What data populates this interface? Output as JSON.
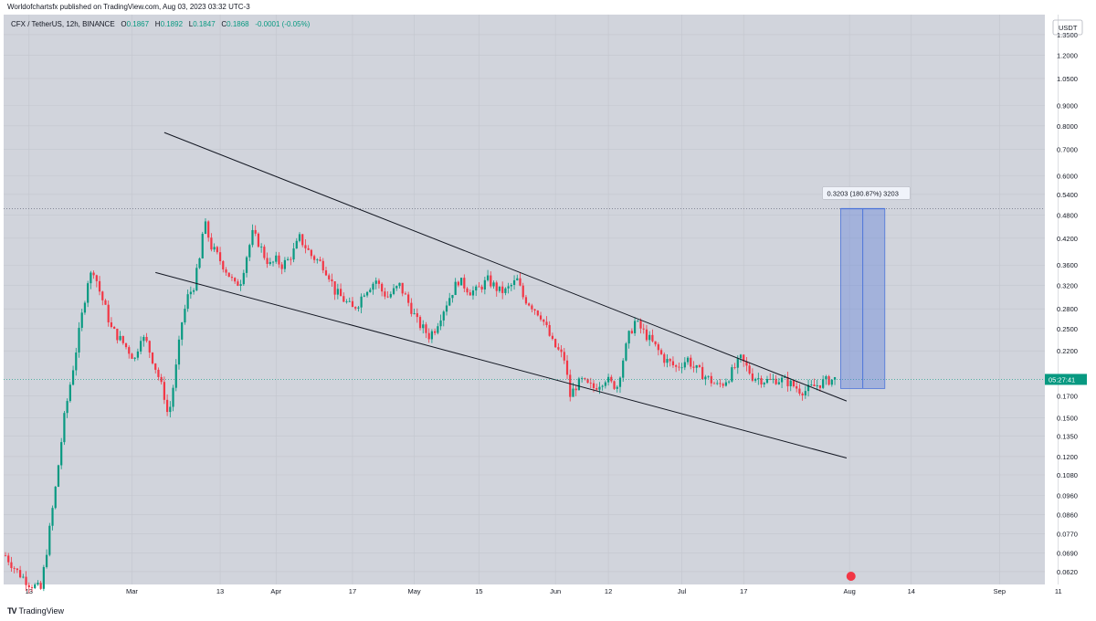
{
  "header": {
    "published": "Worldofchartsfx published on TradingView.com, Aug 03, 2023 03:32 UTC-3",
    "symbol": "CFX / TetherUS, 12h, BINANCE",
    "o_label": "O",
    "o_value": "0.1867",
    "h_label": "H",
    "h_value": "0.1892",
    "l_label": "L",
    "l_value": "0.1847",
    "c_label": "C",
    "c_value": "0.1868",
    "change": "-0.0001 (-0.05%)"
  },
  "footer": {
    "brand": "TradingView"
  },
  "colors": {
    "up": "#089981",
    "down": "#f23645",
    "background": "#d1d4dc",
    "projection": "#4c74d9",
    "price_tag": "#089981"
  },
  "chart_data": {
    "type": "candlestick",
    "currency": "USDT",
    "y_scale": "log",
    "grid": true,
    "y_ticks": [
      "1.3500",
      "1.2000",
      "1.0500",
      "0.9000",
      "0.8000",
      "0.7000",
      "0.6000",
      "0.5400",
      "0.4800",
      "0.4200",
      "0.3600",
      "0.3200",
      "0.2800",
      "0.2500",
      "0.2200",
      "0.1700",
      "0.1500",
      "0.1350",
      "0.1200",
      "0.1080",
      "0.0960",
      "0.0860",
      "0.0770",
      "0.0690",
      "0.0620"
    ],
    "x_ticks": [
      "13",
      "Mar",
      "13",
      "Apr",
      "17",
      "May",
      "15",
      "Jun",
      "12",
      "Jul",
      "17",
      "Aug",
      "14",
      "Sep",
      "11"
    ],
    "current_price_label": "05:27:41",
    "current_price": 0.1868,
    "projection": {
      "label": "0.3203 (180.87%) 3203",
      "from": 0.1773,
      "to": 0.4976
    },
    "reference_price": 0.4976,
    "price_path": [
      [
        0,
        0.068
      ],
      [
        4,
        0.062
      ],
      [
        8,
        0.058
      ],
      [
        12,
        0.056
      ],
      [
        14,
        0.07
      ],
      [
        17,
        0.1
      ],
      [
        20,
        0.15
      ],
      [
        23,
        0.2
      ],
      [
        26,
        0.27
      ],
      [
        28,
        0.33
      ],
      [
        30,
        0.35
      ],
      [
        32,
        0.31
      ],
      [
        34,
        0.28
      ],
      [
        36,
        0.25
      ],
      [
        38,
        0.24
      ],
      [
        40,
        0.23
      ],
      [
        42,
        0.22
      ],
      [
        44,
        0.21
      ],
      [
        46,
        0.24
      ],
      [
        48,
        0.23
      ],
      [
        50,
        0.21
      ],
      [
        52,
        0.19
      ],
      [
        54,
        0.17
      ],
      [
        55,
        0.155
      ],
      [
        56,
        0.16
      ],
      [
        58,
        0.2
      ],
      [
        60,
        0.26
      ],
      [
        62,
        0.3
      ],
      [
        64,
        0.32
      ],
      [
        66,
        0.37
      ],
      [
        67,
        0.43
      ],
      [
        68,
        0.45
      ],
      [
        70,
        0.4
      ],
      [
        72,
        0.38
      ],
      [
        74,
        0.36
      ],
      [
        76,
        0.34
      ],
      [
        78,
        0.32
      ],
      [
        80,
        0.33
      ],
      [
        82,
        0.38
      ],
      [
        84,
        0.43
      ],
      [
        86,
        0.41
      ],
      [
        88,
        0.38
      ],
      [
        90,
        0.36
      ],
      [
        92,
        0.37
      ],
      [
        94,
        0.36
      ],
      [
        96,
        0.37
      ],
      [
        98,
        0.39
      ],
      [
        100,
        0.42
      ],
      [
        102,
        0.4
      ],
      [
        104,
        0.38
      ],
      [
        106,
        0.37
      ],
      [
        108,
        0.36
      ],
      [
        110,
        0.34
      ],
      [
        112,
        0.31
      ],
      [
        114,
        0.3
      ],
      [
        116,
        0.29
      ],
      [
        118,
        0.28
      ],
      [
        120,
        0.29
      ],
      [
        122,
        0.31
      ],
      [
        124,
        0.32
      ],
      [
        126,
        0.33
      ],
      [
        128,
        0.31
      ],
      [
        130,
        0.3
      ],
      [
        132,
        0.31
      ],
      [
        134,
        0.32
      ],
      [
        136,
        0.3
      ],
      [
        138,
        0.28
      ],
      [
        140,
        0.26
      ],
      [
        142,
        0.25
      ],
      [
        144,
        0.24
      ],
      [
        146,
        0.25
      ],
      [
        148,
        0.27
      ],
      [
        150,
        0.29
      ],
      [
        152,
        0.31
      ],
      [
        154,
        0.33
      ],
      [
        156,
        0.32
      ],
      [
        158,
        0.31
      ],
      [
        160,
        0.31
      ],
      [
        162,
        0.32
      ],
      [
        164,
        0.33
      ],
      [
        166,
        0.32
      ],
      [
        168,
        0.31
      ],
      [
        170,
        0.31
      ],
      [
        172,
        0.32
      ],
      [
        174,
        0.33
      ],
      [
        176,
        0.3
      ],
      [
        178,
        0.29
      ],
      [
        180,
        0.28
      ],
      [
        182,
        0.27
      ],
      [
        184,
        0.25
      ],
      [
        186,
        0.23
      ],
      [
        188,
        0.22
      ],
      [
        190,
        0.21
      ],
      [
        192,
        0.17
      ],
      [
        193,
        0.175
      ],
      [
        194,
        0.18
      ],
      [
        196,
        0.185
      ],
      [
        198,
        0.18
      ],
      [
        200,
        0.178
      ],
      [
        202,
        0.183
      ],
      [
        204,
        0.188
      ],
      [
        206,
        0.182
      ],
      [
        208,
        0.18
      ],
      [
        210,
        0.21
      ],
      [
        212,
        0.24
      ],
      [
        214,
        0.26
      ],
      [
        216,
        0.25
      ],
      [
        218,
        0.24
      ],
      [
        220,
        0.23
      ],
      [
        222,
        0.22
      ],
      [
        224,
        0.21
      ],
      [
        226,
        0.205
      ],
      [
        228,
        0.2
      ],
      [
        230,
        0.205
      ],
      [
        232,
        0.21
      ],
      [
        234,
        0.2
      ],
      [
        236,
        0.195
      ],
      [
        238,
        0.19
      ],
      [
        240,
        0.185
      ],
      [
        242,
        0.18
      ],
      [
        244,
        0.183
      ],
      [
        246,
        0.19
      ],
      [
        248,
        0.2
      ],
      [
        250,
        0.21
      ],
      [
        252,
        0.2
      ],
      [
        254,
        0.19
      ],
      [
        256,
        0.188
      ],
      [
        258,
        0.186
      ],
      [
        260,
        0.185
      ],
      [
        262,
        0.187
      ],
      [
        264,
        0.186
      ],
      [
        266,
        0.184
      ],
      [
        268,
        0.18
      ],
      [
        270,
        0.176
      ],
      [
        272,
        0.175
      ],
      [
        274,
        0.178
      ],
      [
        276,
        0.181
      ],
      [
        278,
        0.184
      ],
      [
        280,
        0.186
      ],
      [
        282,
        0.187
      ]
    ],
    "trendlines": [
      {
        "name": "upper",
        "from": [
          54,
          0.77
        ],
        "to": [
          286,
          0.165
        ]
      },
      {
        "name": "lower",
        "from": [
          51,
          0.345
        ],
        "to": [
          286,
          0.119
        ]
      }
    ]
  }
}
